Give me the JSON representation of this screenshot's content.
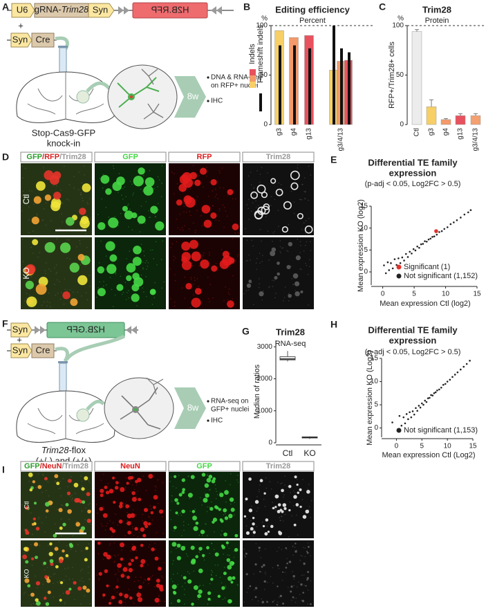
{
  "panel_labels": [
    "A",
    "B",
    "C",
    "D",
    "E",
    "F",
    "G",
    "H",
    "I"
  ],
  "panel_a": {
    "u6": "U6",
    "grna": [
      "gRNA-",
      "Trim28"
    ],
    "syn_1": "Syn",
    "h2b": "H2B.RFP",
    "plus": "+",
    "syn_2": "Syn",
    "cre": "Cre",
    "mouse": [
      "Stop-Cas9-GFP",
      "knock-in"
    ],
    "time": "8w",
    "bullets": [
      [
        "DNA & RNA-seq",
        "on RFP+ nuclei"
      ],
      [
        "IHC"
      ]
    ]
  },
  "panel_f": {
    "syn_1": "Syn",
    "h2b": "H2B.GFP",
    "plus": "+",
    "syn_2": "Syn",
    "cre": "Cre",
    "mouse_gene": [
      "Trim28",
      "-flox"
    ],
    "mouse_genotype": "(+/-) and (+/+)",
    "time": "8w",
    "bullets": [
      [
        "RNA-seq on",
        "GFP+ nuclei"
      ],
      [
        "IHC"
      ]
    ]
  },
  "micrographs_d": {
    "merge": [
      "GFP",
      "/RFP",
      "/Trim28"
    ],
    "channels": [
      "GFP",
      "RFP",
      "Trim28"
    ],
    "rows": [
      "Ctl",
      "KO"
    ]
  },
  "micrographs_i": {
    "merge": [
      "GFP",
      "/NeuN",
      "/Trim28"
    ],
    "channels": [
      "NeuN",
      "GFP",
      "Trim28"
    ],
    "rows": [
      "Ctl",
      "KO"
    ]
  },
  "chart_data": [
    {
      "type": "bar",
      "title": "Editing efficiency",
      "subtitle": "Percent",
      "y_unit": "%",
      "categories": [
        "g3",
        "g4",
        "g13",
        null,
        "g3/4/13",
        null
      ],
      "series": [
        {
          "name": "Indels",
          "colors": [
            "#f7cf67",
            "#f49a6a",
            "#e8525e",
            "#f7cf67",
            "#f49a6a",
            "#e8525e"
          ],
          "values": [
            95,
            88,
            90,
            55,
            64,
            65
          ]
        },
        {
          "name": "Frameshift indels",
          "color": "#111111",
          "values": [
            80,
            80,
            77,
            100,
            77,
            73
          ]
        }
      ],
      "ylim": [
        0,
        100
      ],
      "yticks": [
        0,
        50,
        100
      ],
      "reference_line": 100
    },
    {
      "type": "bar",
      "title": "Trim28",
      "subtitle": "Protein",
      "y_unit": "%",
      "ylabel": "RFP+/Trim28+ cells",
      "categories": [
        "Ctl",
        "g3",
        "g4",
        "g13",
        "g3/4/13"
      ],
      "series": [
        {
          "colors": [
            "#ececec",
            "#f7cf67",
            "#f49a6a",
            "#e8525e",
            "#f4a070"
          ],
          "values": [
            94,
            18,
            5,
            9,
            9
          ],
          "errors": [
            2,
            7,
            1,
            2,
            2
          ]
        }
      ],
      "ylim": [
        0,
        100
      ],
      "yticks": [
        0,
        50,
        100
      ],
      "reference_line": 100
    },
    {
      "type": "scatter",
      "title": [
        "Differential TE family",
        "expression"
      ],
      "subtitle": "(p-adj < 0.05, Log2FC > 0.5)",
      "xlabel": "Mean expression Ctl (log2)",
      "ylabel": "Mean expression KO (log2)",
      "series": [
        {
          "name": "Significant (1)",
          "color": "#e3322b",
          "x": [
            8.5
          ],
          "y": [
            9.3
          ]
        },
        {
          "name": "Not significant (1,152)",
          "color": "#222222",
          "x": [
            0.2,
            0.5,
            0.8,
            1.0,
            1.3,
            1.6,
            1.9,
            2.2,
            2.5,
            2.8,
            3.1,
            3.4,
            3.7,
            4.0,
            4.3,
            4.6,
            4.9,
            5.2,
            5.5,
            5.8,
            6.1,
            6.4,
            6.7,
            7.0,
            7.3,
            7.6,
            7.9,
            8.2,
            8.6,
            9.0,
            9.4,
            9.8,
            10.3,
            10.8,
            11.3,
            11.8,
            12.4,
            13.0,
            13.6,
            14.0
          ],
          "y": [
            1.5,
            -0.3,
            2.2,
            0.4,
            2.0,
            0.8,
            2.9,
            1.6,
            3.1,
            2.0,
            3.3,
            2.6,
            4.1,
            3.4,
            4.6,
            4.2,
            5.2,
            4.9,
            5.8,
            5.5,
            6.3,
            6.4,
            7.0,
            6.9,
            7.4,
            7.6,
            8.0,
            8.1,
            8.5,
            9.1,
            9.3,
            9.8,
            10.2,
            10.9,
            11.3,
            11.8,
            12.4,
            13.1,
            13.6,
            14.1
          ]
        }
      ],
      "xlim": [
        -1.5,
        15
      ],
      "ylim": [
        -3,
        15
      ],
      "xticks": [
        0,
        5,
        10,
        15
      ],
      "yticks": [
        0,
        5,
        10,
        15
      ]
    },
    {
      "type": "box",
      "title": "Trim28",
      "subtitle": "RNA-seq",
      "ylabel": "Median of ratios",
      "categories": [
        "Ctl",
        "KO"
      ],
      "colors": [
        "#f4f4f4",
        "#e8846e"
      ],
      "boxes": [
        {
          "min": 2540,
          "q1": 2590,
          "median": 2620,
          "q3": 2690,
          "max": 2870
        },
        {
          "min": 120,
          "q1": 150,
          "median": 170,
          "q3": 185,
          "max": 200
        }
      ],
      "ylim": [
        0,
        3200
      ],
      "yticks": [
        0,
        1000,
        2000,
        3000
      ]
    },
    {
      "type": "scatter",
      "title": [
        "Differential TE family",
        "expression"
      ],
      "subtitle": "(p-adj < 0.05, Log2FC > 0.5)",
      "xlabel": "Mean expression Ctl (Log2)",
      "ylabel": "Mean expression KO (Log2)",
      "series": [
        {
          "name": "Not significant (1,153)",
          "color": "#222222",
          "x": [
            -0.8,
            0.3,
            0.6,
            1.0,
            1.4,
            1.7,
            2.0,
            2.3,
            2.6,
            2.9,
            3.2,
            3.5,
            3.8,
            4.1,
            4.4,
            4.7,
            5.0,
            5.3,
            5.6,
            5.9,
            6.2,
            6.5,
            6.8,
            7.1,
            7.4,
            7.7,
            8.0,
            8.4,
            8.8,
            9.2,
            9.6,
            10.0,
            10.5,
            11.0,
            11.5,
            12.0,
            12.6,
            13.2,
            13.8,
            14.4
          ],
          "y": [
            1.2,
            -0.5,
            2.6,
            0.5,
            2.3,
            1.0,
            3.0,
            1.9,
            3.4,
            2.3,
            3.6,
            2.9,
            4.3,
            3.7,
            4.8,
            4.4,
            5.3,
            5.0,
            5.9,
            5.6,
            6.4,
            6.5,
            7.1,
            7.0,
            7.5,
            7.7,
            8.1,
            8.3,
            8.7,
            9.3,
            9.5,
            10.0,
            10.4,
            11.0,
            11.5,
            12.0,
            12.6,
            13.2,
            13.8,
            14.5
          ]
        }
      ],
      "xlim": [
        -2.5,
        15
      ],
      "ylim": [
        -2,
        15
      ],
      "xticks": [
        0,
        5,
        10,
        15
      ],
      "yticks": [
        0,
        5,
        10,
        15
      ]
    }
  ]
}
